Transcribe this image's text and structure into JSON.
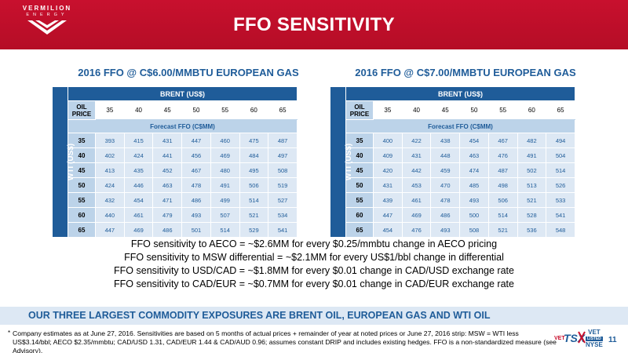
{
  "header": {
    "title": "FFO SENSITIVITY",
    "logo_name": "VERMILION",
    "logo_sub": "ENERGY",
    "brand_color": "#c8102e"
  },
  "tables": [
    {
      "title": "2016 FFO @ C$6.00/MMBTU EUROPEAN GAS",
      "brent_label": "BRENT (US$)",
      "wti_label": "WTI (US$)",
      "oil_price_label": "OIL PRICE",
      "forecast_label": "Forecast FFO (C$MM)",
      "brent_prices": [
        "35",
        "40",
        "45",
        "50",
        "55",
        "60",
        "65"
      ],
      "rows": [
        {
          "wti": "35",
          "values": [
            "393",
            "415",
            "431",
            "447",
            "460",
            "475",
            "487"
          ]
        },
        {
          "wti": "40",
          "values": [
            "402",
            "424",
            "441",
            "456",
            "469",
            "484",
            "497"
          ]
        },
        {
          "wti": "45",
          "values": [
            "413",
            "435",
            "452",
            "467",
            "480",
            "495",
            "508"
          ]
        },
        {
          "wti": "50",
          "values": [
            "424",
            "446",
            "463",
            "478",
            "491",
            "506",
            "519"
          ]
        },
        {
          "wti": "55",
          "values": [
            "432",
            "454",
            "471",
            "486",
            "499",
            "514",
            "527"
          ]
        },
        {
          "wti": "60",
          "values": [
            "440",
            "461",
            "479",
            "493",
            "507",
            "521",
            "534"
          ]
        },
        {
          "wti": "65",
          "values": [
            "447",
            "469",
            "486",
            "501",
            "514",
            "529",
            "541"
          ]
        }
      ]
    },
    {
      "title": "2016 FFO @ C$7.00/MMBTU EUROPEAN GAS",
      "brent_label": "BRENT (US$)",
      "wti_label": "WTI (US$)",
      "oil_price_label": "OIL PRICE",
      "forecast_label": "Forecast FFO (C$MM)",
      "brent_prices": [
        "35",
        "40",
        "45",
        "50",
        "55",
        "60",
        "65"
      ],
      "rows": [
        {
          "wti": "35",
          "values": [
            "400",
            "422",
            "438",
            "454",
            "467",
            "482",
            "494"
          ]
        },
        {
          "wti": "40",
          "values": [
            "409",
            "431",
            "448",
            "463",
            "476",
            "491",
            "504"
          ]
        },
        {
          "wti": "45",
          "values": [
            "420",
            "442",
            "459",
            "474",
            "487",
            "502",
            "514"
          ]
        },
        {
          "wti": "50",
          "values": [
            "431",
            "453",
            "470",
            "485",
            "498",
            "513",
            "526"
          ]
        },
        {
          "wti": "55",
          "values": [
            "439",
            "461",
            "478",
            "493",
            "506",
            "521",
            "533"
          ]
        },
        {
          "wti": "60",
          "values": [
            "447",
            "469",
            "486",
            "500",
            "514",
            "528",
            "541"
          ]
        },
        {
          "wti": "65",
          "values": [
            "454",
            "476",
            "493",
            "508",
            "521",
            "536",
            "548"
          ]
        }
      ]
    }
  ],
  "sensitivity_notes": [
    "FFO sensitivity to AECO = ~$2.6MM for every $0.25/mmbtu change in AECO pricing",
    "FFO sensitivity to MSW differential = ~$2.1MM for every US$1/bbl change in differential",
    "FFO sensitivity to USD/CAD = ~$1.8MM for every $0.01 change in CAD/USD exchange rate",
    "FFO sensitivity to CAD/EUR = ~$0.7MM for every $0.01 change in CAD/EUR exchange rate"
  ],
  "exposures_banner": "OUR THREE LARGEST COMMODITY EXPOSURES ARE BRENT OIL, EUROPEAN GAS AND WTI OIL",
  "footnote": {
    "marker": "*",
    "text": "Company estimates as at June 27, 2016. Sensitivities are based on 5 months of actual prices + remainder of year at noted prices or June 27, 2016 strip: MSW = WTI less US$3.14/bbl; AECO $2.35/mmbtu; CAD/USD 1.31, CAD/EUR 1.44 & CAD/AUD 0.96; assumes constant DRIP and includes existing hedges. FFO is a non-standardized measure (see Advisory)."
  },
  "listing": {
    "tsx_prefix": "VET",
    "tsx_label": "TSX",
    "nyse_symbol": "VET",
    "nyse_listed": "LISTED",
    "nyse_label": "NYSE"
  },
  "page_number": "11",
  "colors": {
    "navy": "#1f5c99",
    "light_blue": "#bcd3e9",
    "cell_blue": "#dde8f4"
  }
}
